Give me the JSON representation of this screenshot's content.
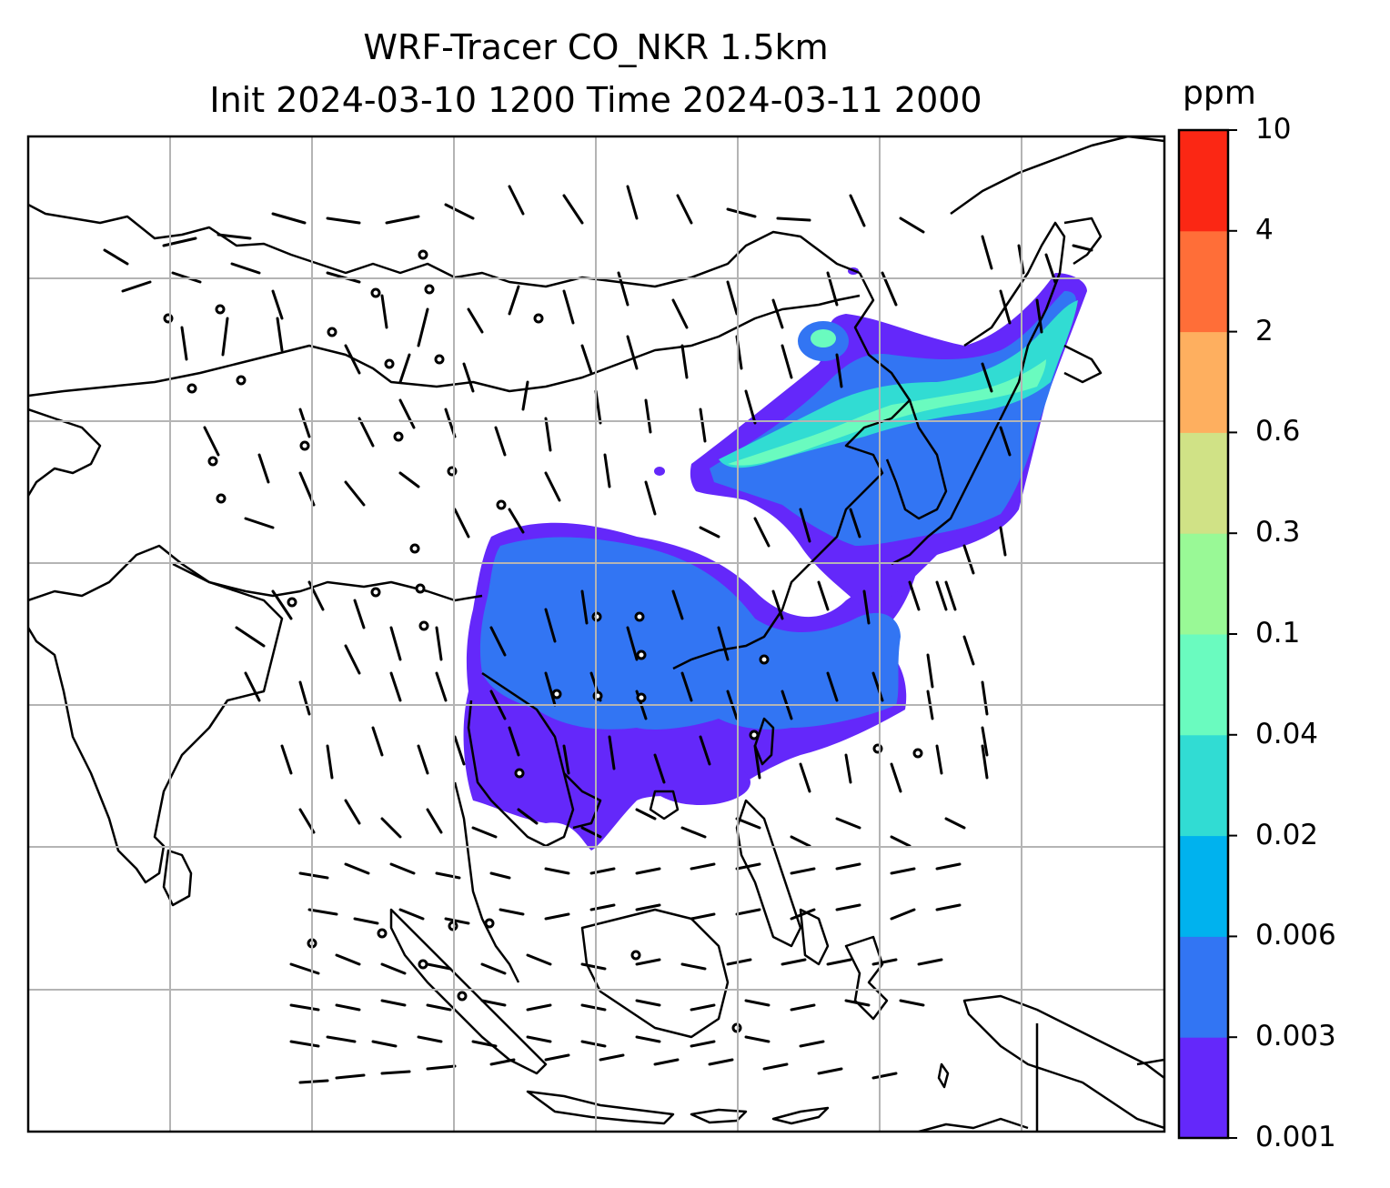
{
  "title": {
    "line1": "WRF-Tracer CO_NKR 1.5km",
    "line2": "Init 2024-03-10 1200 Time 2024-03-11 2000"
  },
  "colorbar": {
    "unit": "ppm",
    "levels": [
      "0.001",
      "0.003",
      "0.006",
      "0.02",
      "0.04",
      "0.1",
      "0.3",
      "0.6",
      "2",
      "4",
      "10"
    ],
    "colors": [
      "#6428fa",
      "#3275f3",
      "#00b2ee",
      "#31dcd3",
      "#6afbbf",
      "#99f996",
      "#d0e286",
      "#feaf5f",
      "#ff6e38",
      "#fb2714"
    ]
  },
  "map": {
    "gridlines": true,
    "gridline_color": "#b4b4b4",
    "coastline_color": "#000000",
    "wind_barbs": true
  }
}
